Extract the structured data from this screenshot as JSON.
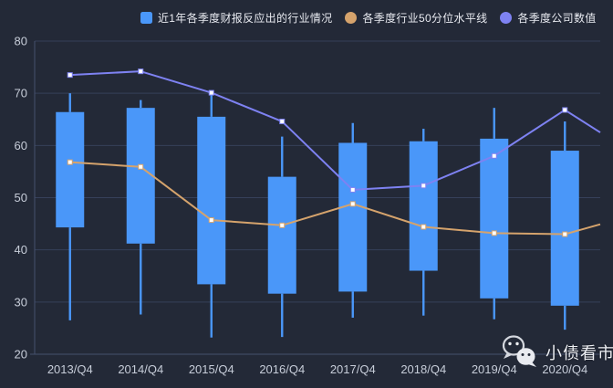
{
  "legend": {
    "items": [
      {
        "label": "近1年各季度财报反应出的行业情况",
        "marker": "square",
        "color": "#4a97f9"
      },
      {
        "label": "各季度行业50分位水平线",
        "marker": "circle",
        "color": "#d5a36c"
      },
      {
        "label": "各季度公司数值",
        "marker": "circle",
        "color": "#7e82f2"
      }
    ]
  },
  "watermark": {
    "icon": "wechat-logo",
    "text": "小债看市"
  },
  "chart_data": {
    "type": "candlestick+line",
    "title": "",
    "xlabel": "",
    "ylabel": "",
    "grid": true,
    "legend_position": "top",
    "categories": [
      "2013/Q4",
      "2014/Q4",
      "2015/Q4",
      "2016/Q4",
      "2017/Q4",
      "2018/Q4",
      "2019/Q4",
      "2020/Q4"
    ],
    "ylim": [
      20,
      80
    ],
    "yticks": [
      20,
      30,
      40,
      50,
      60,
      70,
      80
    ],
    "candlestick": {
      "name": "近1年各季度财报反应出的行业情况",
      "color": "#4a97f9",
      "note": "values are [low, boxBottom, boxTop, high]",
      "values": [
        [
          26.5,
          44.3,
          66.4,
          70.0
        ],
        [
          27.6,
          41.2,
          67.2,
          68.7
        ],
        [
          23.2,
          33.4,
          65.5,
          69.9
        ],
        [
          23.3,
          31.6,
          54.0,
          61.7
        ],
        [
          27.0,
          32.0,
          60.5,
          64.3
        ],
        [
          27.4,
          36.0,
          60.8,
          63.2
        ],
        [
          26.7,
          30.7,
          61.3,
          67.2
        ],
        [
          24.7,
          29.3,
          59.0,
          64.6
        ]
      ]
    },
    "series": [
      {
        "name": "各季度行业50分位水平线",
        "type": "line",
        "color": "#d5a36c",
        "values": [
          56.8,
          55.9,
          45.7,
          44.7,
          48.8,
          44.4,
          43.2,
          43.0
        ],
        "edge_value": 44.9
      },
      {
        "name": "各季度公司数值",
        "type": "line",
        "color": "#7e82f2",
        "values": [
          73.5,
          74.2,
          70.1,
          64.6,
          51.5,
          52.3,
          58.0,
          66.8
        ],
        "edge_value": 62.5
      }
    ],
    "colors": {
      "background": "#232937",
      "grid": "#36405a",
      "axis": "#46516e",
      "tick_text": "#c7cdd9",
      "legend_text": "#e8eaf0",
      "marker_fill": "#ffffff"
    }
  }
}
